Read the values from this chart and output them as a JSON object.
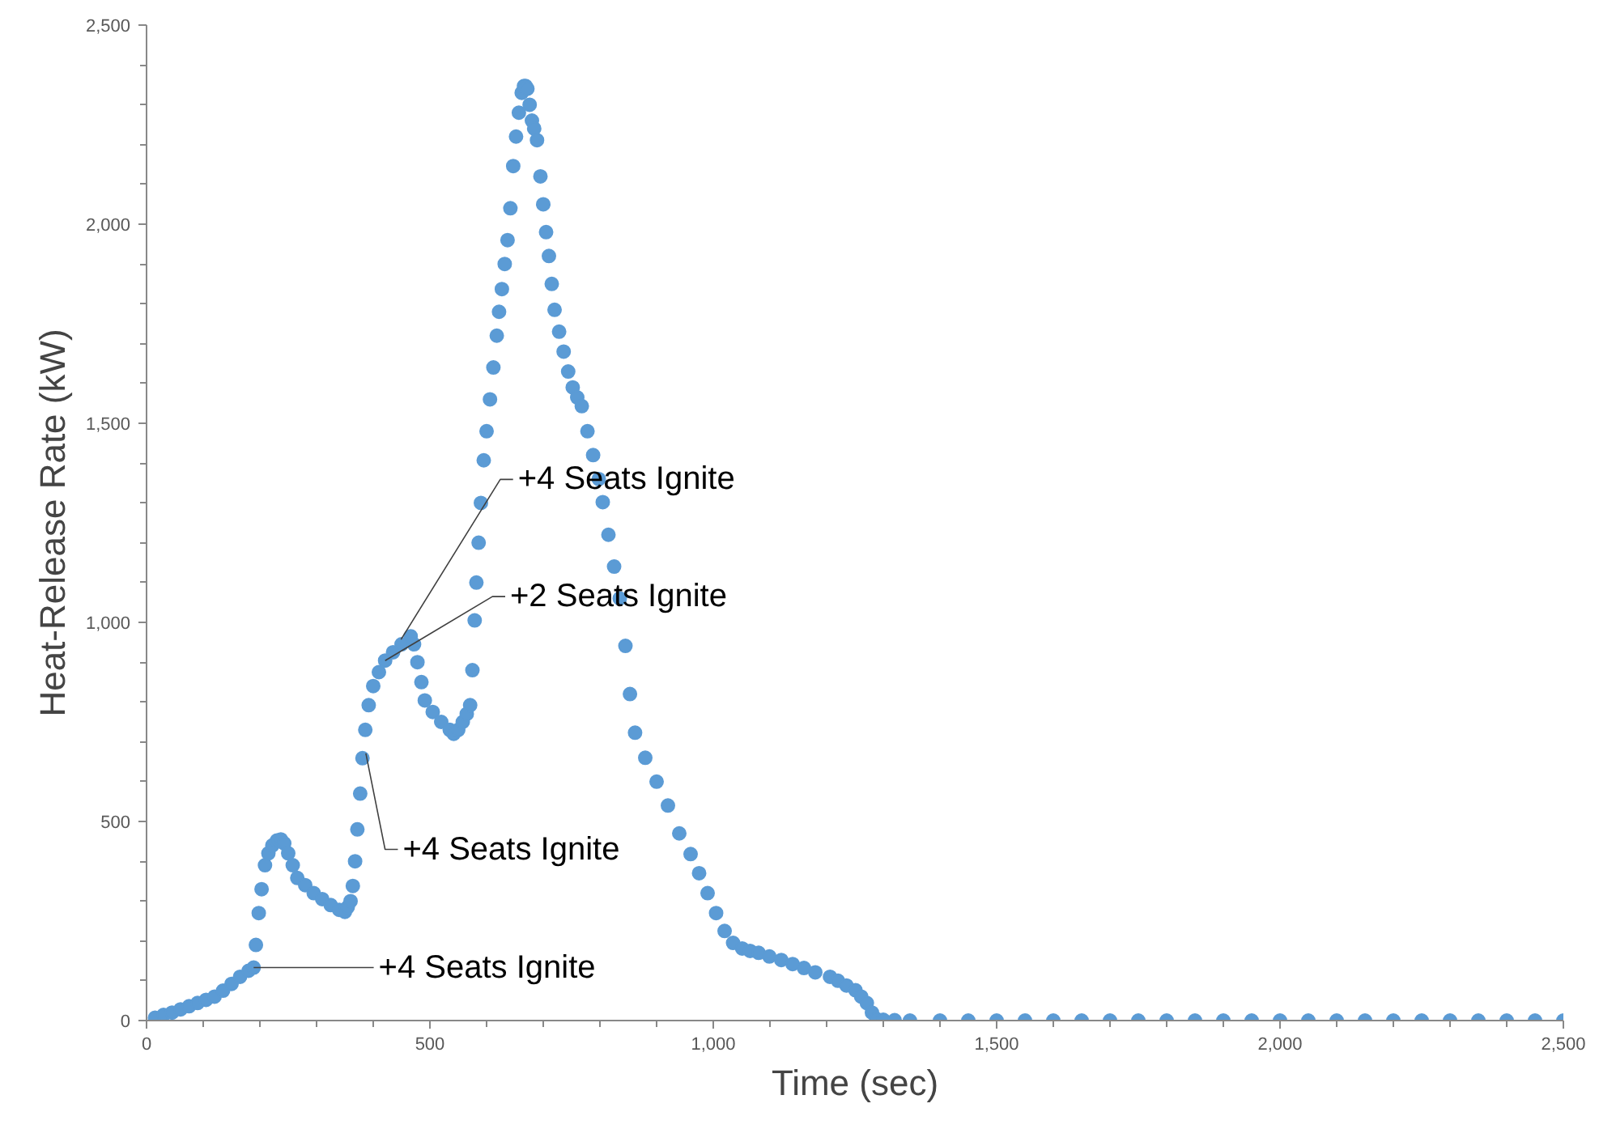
{
  "chart_data": {
    "type": "scatter",
    "xlabel": "Time (sec)",
    "ylabel": "Heat-Release Rate (kW)",
    "marker": "circle",
    "grid": false,
    "xlim": [
      0,
      2500
    ],
    "ylim": [
      0,
      2500
    ],
    "xticks": [
      0,
      500,
      {
        "value": 1000,
        "label": "1,000"
      },
      {
        "value": 1500,
        "label": "1,500"
      },
      {
        "value": 2000,
        "label": "2,000"
      },
      {
        "value": 2500,
        "label": "2,500"
      }
    ],
    "yticks": [
      0,
      500,
      {
        "value": 1000,
        "label": "1,000"
      },
      {
        "value": 1500,
        "label": "1,500"
      },
      {
        "value": 2000,
        "label": "2,000"
      },
      {
        "value": 2500,
        "label": "2,500"
      }
    ],
    "series": [
      {
        "color": "#5b9bd5",
        "x": [
          15,
          30,
          45,
          60,
          75,
          90,
          105,
          120,
          135,
          150,
          165,
          180,
          189,
          193,
          198,
          203,
          209,
          215,
          222,
          230,
          237,
          243,
          250,
          258,
          266,
          280,
          295,
          310,
          325,
          340,
          350,
          355,
          360,
          364,
          368,
          372,
          377,
          381,
          386,
          392,
          400,
          410,
          421,
          435,
          450,
          466,
          472,
          478,
          485,
          491,
          505,
          520,
          535,
          542,
          550,
          558,
          565,
          571,
          575,
          579,
          582,
          586,
          590,
          595,
          600,
          606,
          612,
          618,
          622,
          627,
          632,
          637,
          642,
          647,
          652,
          657,
          662,
          666,
          669,
          672,
          676,
          680,
          684,
          689,
          695,
          700,
          705,
          710,
          715,
          720,
          728,
          736,
          744,
          752,
          760,
          768,
          778,
          788,
          798,
          805,
          815,
          825,
          835,
          845,
          853,
          862,
          880,
          900,
          920,
          940,
          960,
          975,
          990,
          1005,
          1020,
          1035,
          1051,
          1065,
          1080,
          1099,
          1120,
          1140,
          1160,
          1180,
          1206,
          1220,
          1235,
          1251,
          1261,
          1271,
          1280,
          1288,
          1300,
          1320,
          1347,
          1400,
          1450,
          1500,
          1550,
          1600,
          1650,
          1700,
          1750,
          1800,
          1850,
          1900,
          1950,
          2000,
          2050,
          2100,
          2150,
          2200,
          2250,
          2300,
          2350,
          2400,
          2450,
          2500
        ],
        "values": [
          7,
          14,
          20,
          28,
          36,
          44,
          52,
          60,
          75,
          92,
          110,
          125,
          133,
          190,
          270,
          330,
          390,
          420,
          440,
          452,
          455,
          445,
          420,
          390,
          358,
          340,
          320,
          305,
          290,
          278,
          273,
          285,
          300,
          338,
          400,
          480,
          570,
          659,
          730,
          792,
          840,
          875,
          904,
          925,
          945,
          965,
          945,
          900,
          850,
          804,
          775,
          750,
          730,
          720,
          730,
          750,
          770,
          792,
          880,
          1005,
          1100,
          1200,
          1300,
          1407,
          1480,
          1560,
          1640,
          1720,
          1780,
          1837,
          1900,
          1960,
          2040,
          2146,
          2220,
          2280,
          2330,
          2347,
          2347,
          2340,
          2300,
          2260,
          2240,
          2211,
          2120,
          2050,
          1980,
          1920,
          1850,
          1785,
          1730,
          1680,
          1630,
          1590,
          1565,
          1543,
          1480,
          1420,
          1360,
          1302,
          1220,
          1140,
          1060,
          941,
          820,
          723,
          660,
          600,
          540,
          470,
          418,
          370,
          320,
          270,
          225,
          195,
          181,
          175,
          170,
          161,
          152,
          142,
          132,
          121,
          110,
          100,
          88,
          76,
          60,
          44,
          20,
          4,
          2,
          1,
          0,
          0,
          0,
          0,
          0,
          0,
          0,
          0,
          0,
          0,
          0,
          0,
          0,
          0,
          0,
          0,
          0,
          0,
          0,
          0,
          0,
          0,
          0,
          0
        ]
      }
    ],
    "annotations": [
      {
        "text": "+4 Seats Ignite",
        "x": 189,
        "y": 133
      },
      {
        "text": "+4 Seats Ignite",
        "x": 387,
        "y": 671
      },
      {
        "text": "+2 Seats Ignite",
        "x": 421,
        "y": 904
      },
      {
        "text": "+4 Seats Ignite",
        "x": 449,
        "y": 957
      }
    ]
  }
}
